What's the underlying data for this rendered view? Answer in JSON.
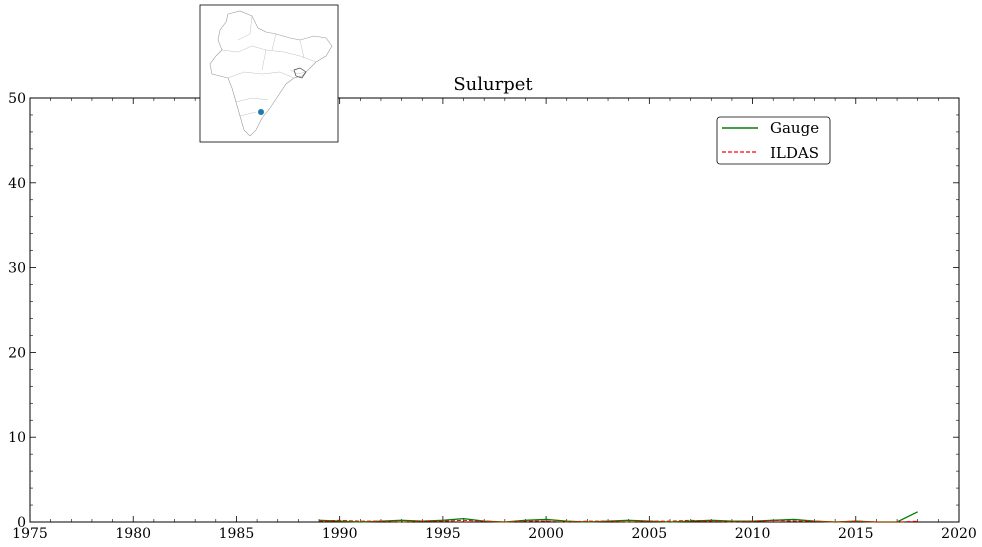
{
  "chart_data": {
    "type": "line",
    "title": "Sulurpet",
    "xlabel": "",
    "ylabel": "",
    "xlim": [
      1975,
      2020
    ],
    "ylim": [
      0,
      50
    ],
    "xticks": [
      "1975",
      "1980",
      "1985",
      "1990",
      "1995",
      "2000",
      "2005",
      "2010",
      "2015",
      "2020"
    ],
    "yticks": [
      "0",
      "10",
      "20",
      "30",
      "40",
      "50"
    ],
    "legend_position": "top-right",
    "grid": false,
    "series": [
      {
        "name": "Gauge",
        "color": "#008000",
        "style": "solid",
        "x": [
          1989,
          1990,
          1991,
          1992,
          1993,
          1994,
          1995,
          1996,
          1997,
          1998,
          1999,
          2000,
          2001,
          2002,
          2003,
          2004,
          2005,
          2006,
          2007,
          2008,
          2009,
          2010,
          2011,
          2012,
          2013,
          2014,
          2015,
          2016,
          2017,
          2018
        ],
        "y": [
          0.2,
          0.1,
          0.0,
          0.1,
          0.2,
          0.1,
          0.2,
          0.4,
          0.1,
          0.0,
          0.2,
          0.3,
          0.1,
          0.0,
          0.1,
          0.2,
          0.1,
          0.0,
          0.1,
          0.2,
          0.1,
          0.1,
          0.2,
          0.3,
          0.1,
          0.0,
          0.1,
          0.0,
          0.0,
          1.2
        ]
      },
      {
        "name": "ILDAS",
        "color": "#ff0000",
        "style": "dashed",
        "x": [
          1989,
          1990,
          1991,
          1992,
          1993,
          1994,
          1995,
          1996,
          1997,
          1998,
          1999,
          2000,
          2001,
          2002,
          2003,
          2004,
          2005,
          2006,
          2007,
          2008,
          2009,
          2010,
          2011,
          2012,
          2013,
          2014,
          2015,
          2016,
          2017,
          2018
        ],
        "y": [
          0.1,
          0.2,
          0.1,
          0.1,
          0.0,
          0.1,
          0.1,
          0.2,
          0.1,
          0.0,
          0.1,
          0.1,
          0.0,
          0.1,
          0.1,
          0.0,
          0.1,
          0.1,
          0.2,
          0.1,
          0.0,
          0.1,
          0.2,
          0.1,
          0.1,
          0.0,
          0.1,
          0.0,
          0.0,
          0.1
        ]
      }
    ],
    "inset_map": {
      "description": "",
      "marker_color": "#1f77b4"
    }
  }
}
